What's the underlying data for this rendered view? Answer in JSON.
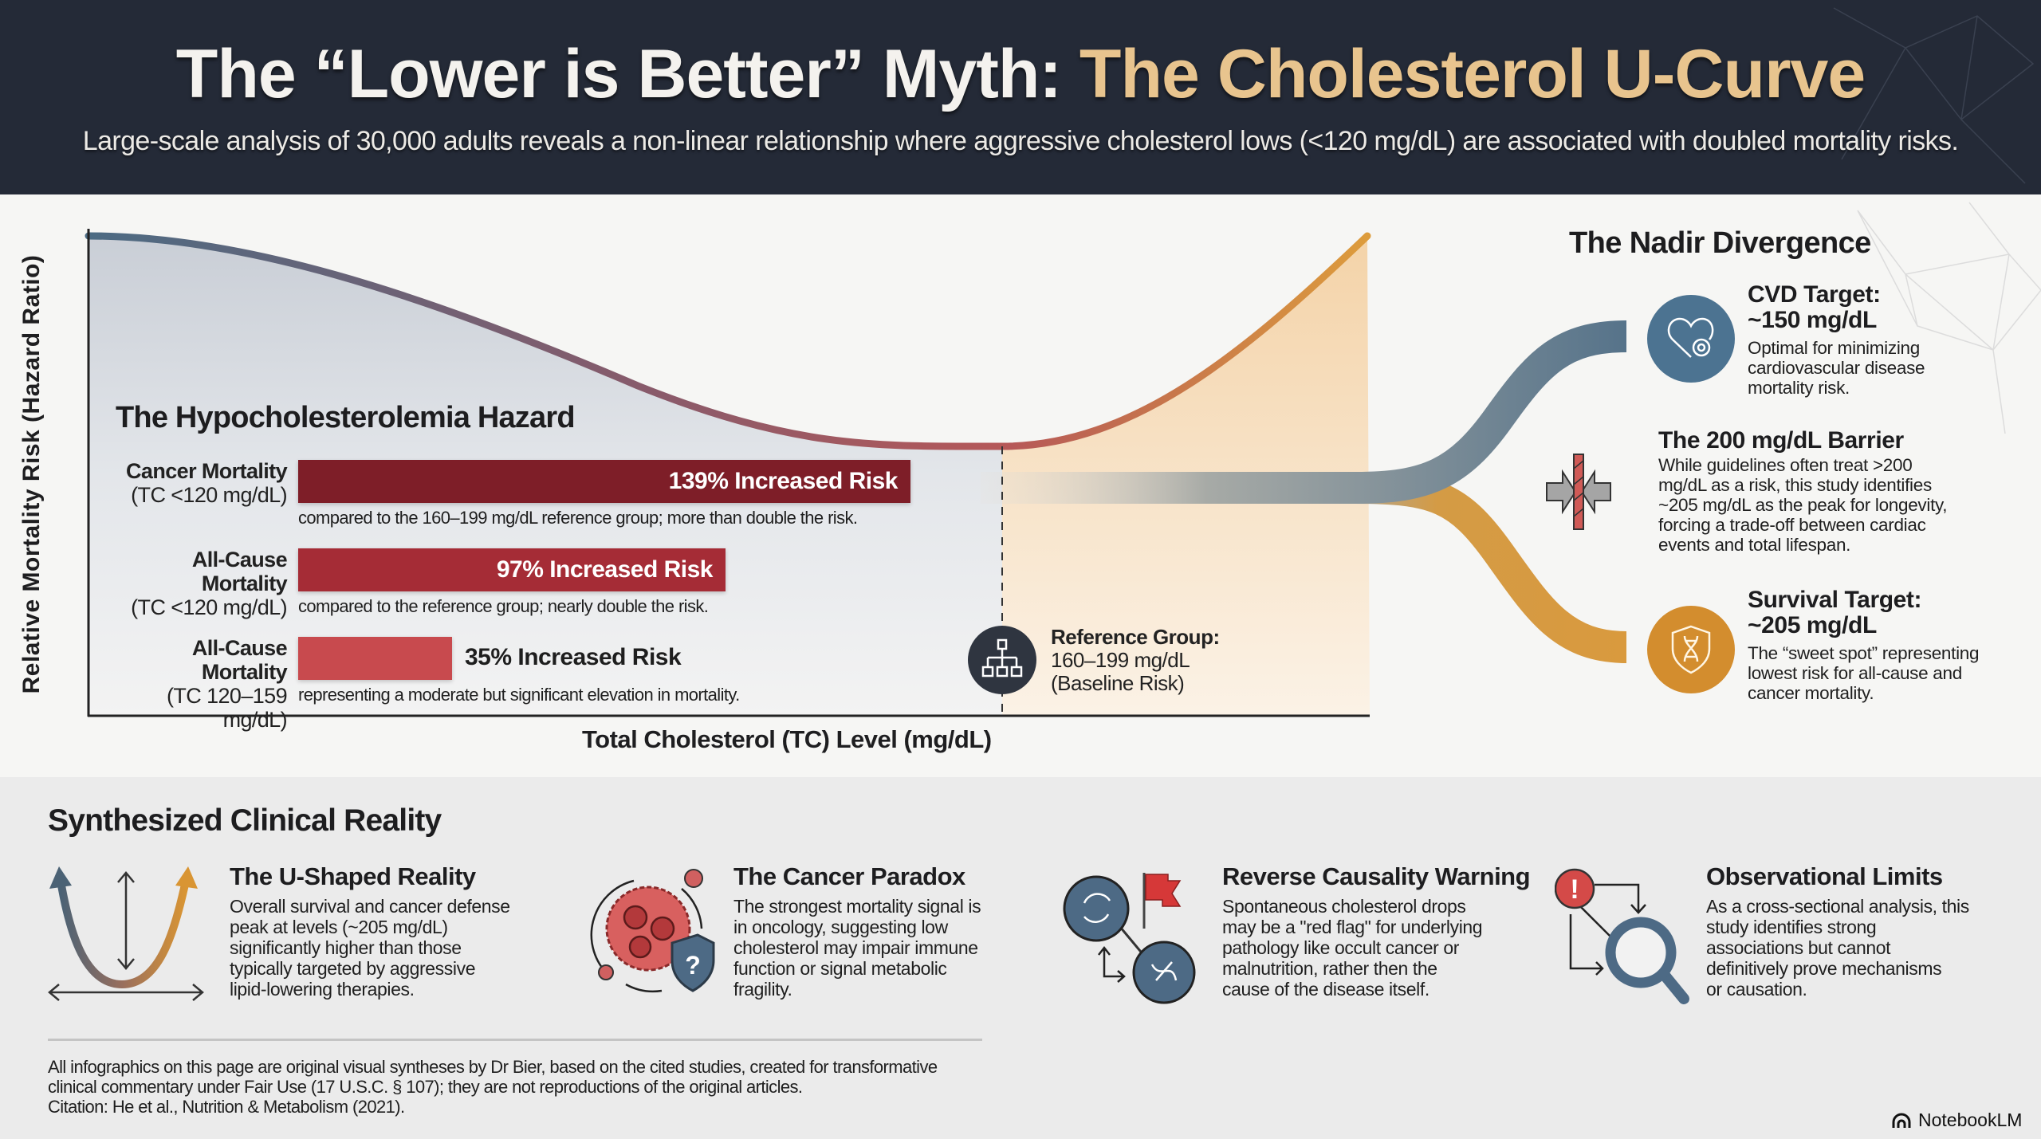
{
  "header": {
    "title_main": "The “Lower is Better” Myth: ",
    "title_accent": "The Cholesterol U-Curve",
    "subtitle": "Large-scale analysis of 30,000 adults reveals a non-linear relationship where aggressive cholesterol lows (<120 mg/dL) are associated with doubled mortality risks."
  },
  "colors": {
    "header_bg": "#242a37",
    "accent_gold": "#e8c48e",
    "curve_blue": "#4c6b83",
    "curve_red": "#b05555",
    "curve_orange": "#d99a3e",
    "bar_dark_red": "#7e1e28",
    "bar_red": "#a52c36",
    "bar_light_red": "#c84a4e",
    "cvd_blue": "#4c7391",
    "survival_orange": "#d38d2e"
  },
  "chart_data": {
    "type": "line",
    "title": "The Cholesterol U-Curve",
    "xlabel": "Total Cholesterol (TC) Level (mg/dL)",
    "ylabel": "Relative Mortality Risk (Hazard Ratio)",
    "curve_shape": "U-shaped; risk highest at low TC, minimum near reference group, rising at high TC",
    "reference_marker": {
      "title": "Reference Group:",
      "range": "160–199 mg/dL",
      "note": "(Baseline Risk)"
    },
    "hazard_panel": {
      "title": "The Hypocholesterolemia Hazard",
      "bars": [
        {
          "label": "Cancer Mortality",
          "range": "(TC <120 mg/dL)",
          "value": 139,
          "value_label": "139% Increased Risk",
          "note": "compared to the 160–199 mg/dL reference group; more than double the risk.",
          "color": "#7e1e28"
        },
        {
          "label": "All-Cause Mortality",
          "range": "(TC <120 mg/dL)",
          "value": 97,
          "value_label": "97% Increased Risk",
          "note": "compared to the reference group; nearly double the risk.",
          "color": "#a52c36"
        },
        {
          "label": "All-Cause Mortality",
          "range": "(TC 120–159 mg/dL)",
          "value": 35,
          "value_label": "35% Increased Risk",
          "note": "representing a moderate but significant elevation in mortality.",
          "color": "#c84a4e"
        }
      ],
      "unit": "% increased risk"
    }
  },
  "nadir": {
    "title": "The Nadir Divergence",
    "items": [
      {
        "icon": "heart-target-icon",
        "title_line1": "CVD Target:",
        "title_line2": "~150 mg/dL",
        "body": [
          "Optimal for minimizing",
          "cardiovascular disease",
          "mortality risk."
        ]
      },
      {
        "icon": "barrier-arrows-icon",
        "title_line1": "The 200 mg/dL Barrier",
        "body": [
          "While guidelines often treat >200",
          "mg/dL as a risk, this study identifies",
          "~205 mg/dL as the peak for longevity,",
          "forcing a trade-off between cardiac",
          "events and total lifespan."
        ]
      },
      {
        "icon": "shield-dna-icon",
        "title_line1": "Survival Target:",
        "title_line2": "~205 mg/dL",
        "body": [
          "The “sweet spot” representing",
          "lowest risk for all-cause and",
          "cancer mortality."
        ]
      }
    ]
  },
  "synthesis": {
    "title": "Synthesized Clinical Reality",
    "cards": [
      {
        "icon": "u-curve-arrows-icon",
        "title": "The U-Shaped Reality",
        "body": [
          "Overall survival and cancer defense",
          "peak at levels (~205 mg/dL)",
          "significantly higher than those",
          "typically targeted by aggressive",
          "lipid-lowering therapies."
        ]
      },
      {
        "icon": "cancer-cell-shield-icon",
        "title": "The Cancer Paradox",
        "body": [
          "The strongest mortality signal is",
          "in oncology, suggesting low",
          "cholesterol may impair immune",
          "function or signal metabolic",
          "fragility."
        ]
      },
      {
        "icon": "reverse-causality-flag-icon",
        "title": "Reverse Causality Warning",
        "body": [
          "Spontaneous cholesterol drops",
          "may be a \"red flag\" for underlying",
          "pathology like occult cancer or",
          "malnutrition, rather then the",
          "cause of the disease itself."
        ]
      },
      {
        "icon": "magnifier-alert-icon",
        "title": "Observational Limits",
        "body": [
          "As a cross-sectional analysis, this",
          "study identifies strong",
          "associations but cannot",
          "definitively prove mechanisms",
          "or causation."
        ]
      }
    ]
  },
  "footer": {
    "disclaimer": [
      "All infographics on this page are original visual syntheses by Dr Bier, based on the cited studies, created for transformative",
      "clinical commentary under Fair Use (17 U.S.C. § 107); they are not reproductions of the original articles.",
      "Citation: He et al., Nutrition & Metabolism (2021)."
    ],
    "brand": "NotebookLM"
  }
}
